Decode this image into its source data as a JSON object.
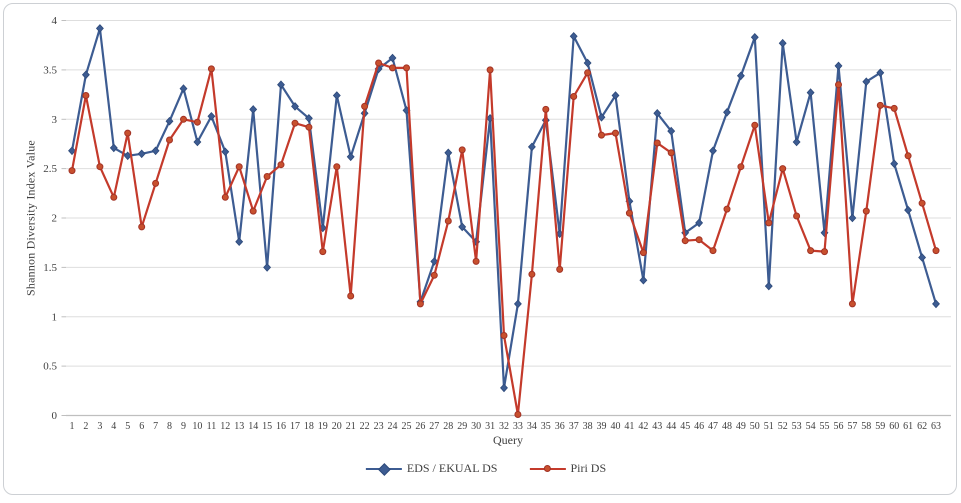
{
  "chart_data": {
    "type": "line",
    "title": "",
    "xlabel": "Query",
    "ylabel": "Shannon Diversity Index Value",
    "ylim": [
      0,
      4
    ],
    "yticks": [
      0,
      0.5,
      1,
      1.5,
      2,
      2.5,
      3,
      3.5,
      4
    ],
    "grid": true,
    "legend_position": "bottom-center",
    "x": [
      1,
      2,
      3,
      4,
      5,
      6,
      7,
      8,
      9,
      10,
      11,
      12,
      13,
      14,
      15,
      16,
      17,
      18,
      19,
      20,
      21,
      22,
      23,
      24,
      25,
      26,
      27,
      28,
      29,
      30,
      31,
      32,
      33,
      34,
      35,
      36,
      37,
      38,
      39,
      40,
      41,
      42,
      43,
      44,
      45,
      46,
      47,
      48,
      49,
      50,
      51,
      52,
      53,
      54,
      55,
      56,
      57,
      58,
      59,
      60,
      61,
      62,
      63
    ],
    "series": [
      {
        "name": "EDS / EKUAL DS",
        "color": "#3d5c92",
        "marker": "diamond",
        "marker_fill": "#3d5c92",
        "marker_edge": "#2e4a7a",
        "values": [
          2.68,
          3.45,
          3.92,
          2.71,
          2.63,
          2.65,
          2.68,
          2.98,
          3.31,
          2.77,
          3.03,
          2.67,
          1.76,
          3.1,
          1.5,
          3.35,
          3.13,
          3.01,
          1.9,
          3.24,
          2.62,
          3.06,
          3.51,
          3.62,
          3.09,
          1.15,
          1.56,
          2.66,
          1.91,
          1.76,
          3.01,
          0.28,
          1.13,
          2.72,
          2.99,
          1.84,
          3.84,
          3.57,
          3.02,
          3.24,
          2.17,
          1.37,
          3.06,
          2.88,
          1.85,
          1.95,
          2.68,
          3.07,
          3.44,
          3.83,
          1.31,
          3.77,
          2.77,
          3.27,
          1.85,
          3.54,
          2.0,
          3.38,
          3.47,
          2.55,
          2.08,
          1.6,
          1.13
        ]
      },
      {
        "name": "Piri DS",
        "color": "#c43a2b",
        "marker": "circle",
        "marker_fill": "#c8502e",
        "marker_edge": "#a23225",
        "values": [
          2.48,
          3.24,
          2.52,
          2.21,
          2.86,
          1.91,
          2.35,
          2.79,
          3.0,
          2.97,
          3.51,
          2.21,
          2.52,
          2.07,
          2.42,
          2.54,
          2.96,
          2.92,
          1.66,
          2.52,
          1.21,
          3.13,
          3.57,
          3.52,
          3.52,
          1.13,
          1.42,
          1.97,
          2.69,
          1.56,
          3.5,
          0.81,
          0.01,
          1.43,
          3.1,
          1.48,
          3.23,
          3.47,
          2.84,
          2.86,
          2.05,
          1.65,
          2.76,
          2.66,
          1.77,
          1.78,
          1.67,
          2.09,
          2.52,
          2.94,
          1.95,
          2.5,
          2.02,
          1.67,
          1.66,
          3.35,
          1.13,
          2.07,
          3.14,
          3.11,
          2.63,
          2.15,
          1.67
        ]
      }
    ]
  },
  "axis_text_color": "#3f3f3f",
  "gridline_color": "#dedede"
}
